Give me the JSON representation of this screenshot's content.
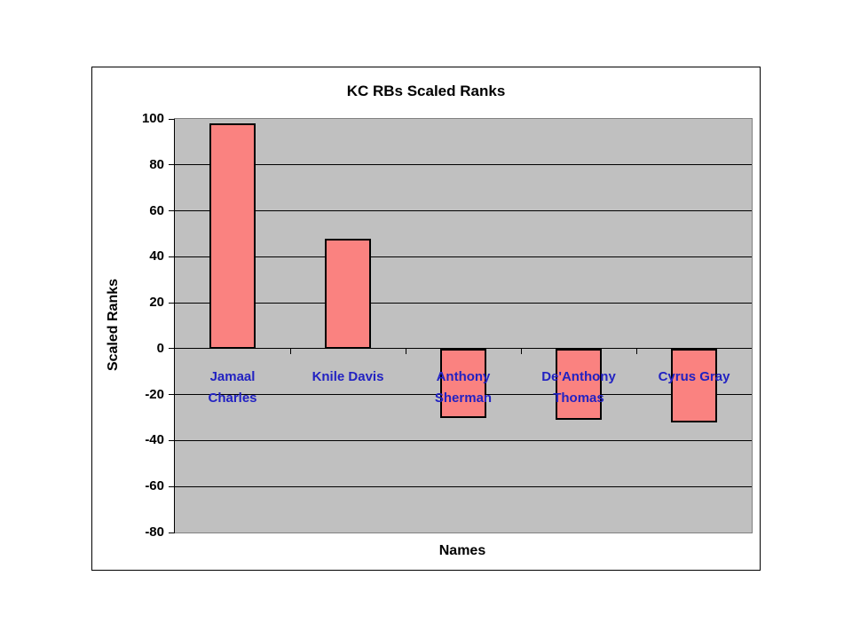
{
  "chart_data": {
    "type": "bar",
    "title": "KC RBs Scaled Ranks",
    "xlabel": "Names",
    "ylabel": "Scaled Ranks",
    "categories": [
      "Jamaal Charles",
      "Knile Davis",
      "Anthony Sherman",
      "De'Anthony Thomas",
      "Cyrus Gray"
    ],
    "values": [
      98,
      48,
      -30,
      -31,
      -32
    ],
    "ylim": [
      -80,
      100
    ],
    "ytick_interval": 20,
    "yticks": [
      100,
      80,
      60,
      40,
      20,
      0,
      -20,
      -40,
      -60,
      -80
    ],
    "grid": true,
    "legend": "none",
    "colors": {
      "bar_fill": "#FA8280",
      "bar_border": "#000000",
      "plot_background": "#C0C0C0",
      "gridline": "#000000",
      "category_label": "#2222C2",
      "axis_text": "#000000",
      "chart_border": "#000000",
      "page_background": "#FFFFFF"
    }
  }
}
